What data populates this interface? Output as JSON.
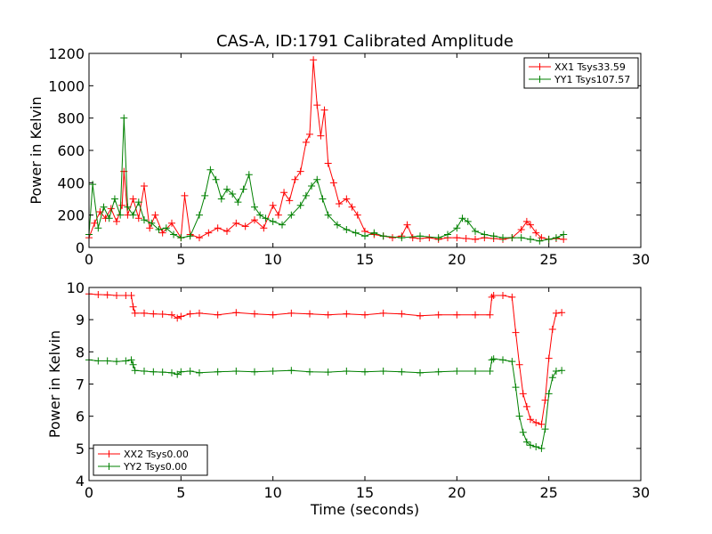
{
  "title": "CAS-A, ID:1791 Calibrated Amplitude",
  "colors": {
    "red": "#ff0000",
    "green": "#008000"
  },
  "chart_data": [
    {
      "type": "line",
      "marker": "+",
      "xlabel": "",
      "ylabel": "Power in Kelvin",
      "xlim": [
        0,
        30
      ],
      "ylim": [
        0,
        1200
      ],
      "xticks": [
        "0",
        "5",
        "10",
        "15",
        "20",
        "25",
        "30"
      ],
      "yticks": [
        "0",
        "200",
        "400",
        "600",
        "800",
        "1000",
        "1200"
      ],
      "legend_position": "top-right",
      "series": [
        {
          "name": "XX1 Tsys33.59",
          "color": "#ff0000",
          "x": [
            0,
            0.3,
            0.6,
            0.9,
            1.2,
            1.5,
            1.8,
            1.9,
            2.1,
            2.4,
            2.7,
            3.0,
            3.3,
            3.6,
            4.0,
            4.5,
            5.0,
            5.2,
            5.5,
            6.0,
            6.5,
            7.0,
            7.5,
            8.0,
            8.5,
            9.0,
            9.5,
            10.0,
            10.3,
            10.6,
            10.9,
            11.2,
            11.5,
            11.8,
            12.0,
            12.2,
            12.4,
            12.6,
            12.8,
            13.0,
            13.3,
            13.6,
            14.0,
            14.3,
            14.6,
            15.0,
            15.5,
            16.0,
            16.5,
            17.0,
            17.3,
            17.6,
            18.0,
            18.5,
            19.0,
            19.5,
            20.0,
            20.5,
            21.0,
            21.5,
            22.0,
            22.5,
            23.0,
            23.5,
            23.8,
            24.0,
            24.3,
            24.6,
            25.0,
            25.4,
            25.8
          ],
          "y": [
            60,
            150,
            220,
            180,
            240,
            160,
            260,
            470,
            200,
            300,
            180,
            380,
            120,
            200,
            90,
            150,
            60,
            320,
            80,
            60,
            90,
            120,
            100,
            150,
            130,
            170,
            120,
            260,
            200,
            340,
            290,
            420,
            470,
            650,
            700,
            1160,
            880,
            690,
            850,
            520,
            400,
            270,
            300,
            250,
            200,
            100,
            80,
            70,
            60,
            70,
            140,
            60,
            55,
            60,
            50,
            60,
            60,
            55,
            50,
            60,
            55,
            50,
            60,
            110,
            160,
            140,
            90,
            60,
            50,
            55,
            50
          ]
        },
        {
          "name": "YY1 Tsys107.57",
          "color": "#008000",
          "x": [
            0,
            0.2,
            0.5,
            0.8,
            1.1,
            1.4,
            1.7,
            1.9,
            2.1,
            2.4,
            2.7,
            3.0,
            3.4,
            3.8,
            4.2,
            4.6,
            5.0,
            5.5,
            6.0,
            6.3,
            6.6,
            6.9,
            7.2,
            7.5,
            7.8,
            8.1,
            8.4,
            8.7,
            9.0,
            9.3,
            9.6,
            10.0,
            10.5,
            11.0,
            11.5,
            11.8,
            12.1,
            12.4,
            12.7,
            13.0,
            13.5,
            14.0,
            14.5,
            15.0,
            15.5,
            16.0,
            17.0,
            18.0,
            19.0,
            19.5,
            20.0,
            20.3,
            20.6,
            21.0,
            21.5,
            22.0,
            22.5,
            23.0,
            23.5,
            24.0,
            24.5,
            25.0,
            25.4,
            25.8
          ],
          "y": [
            80,
            390,
            120,
            250,
            180,
            300,
            200,
            800,
            250,
            200,
            280,
            170,
            150,
            110,
            120,
            80,
            60,
            70,
            200,
            320,
            480,
            420,
            300,
            360,
            330,
            280,
            360,
            450,
            250,
            200,
            180,
            160,
            140,
            200,
            260,
            320,
            380,
            420,
            300,
            200,
            140,
            110,
            90,
            70,
            90,
            70,
            60,
            70,
            60,
            80,
            120,
            180,
            160,
            100,
            80,
            70,
            60,
            60,
            60,
            50,
            40,
            50,
            60,
            80
          ]
        }
      ]
    },
    {
      "type": "line",
      "marker": "+",
      "xlabel": "Time (seconds)",
      "ylabel": "Power in Kelvin",
      "xlim": [
        0,
        30
      ],
      "ylim": [
        4,
        10
      ],
      "xticks": [
        "0",
        "5",
        "10",
        "15",
        "20",
        "25",
        "30"
      ],
      "yticks": [
        "4",
        "5",
        "6",
        "7",
        "8",
        "9",
        "10"
      ],
      "legend_position": "bottom-left",
      "series": [
        {
          "name": "XX2 Tsys0.00",
          "color": "#ff0000",
          "x": [
            0,
            0.5,
            1.0,
            1.5,
            2.0,
            2.3,
            2.4,
            2.5,
            3.0,
            3.5,
            4.0,
            4.5,
            4.8,
            5.0,
            5.5,
            6.0,
            7.0,
            8.0,
            9.0,
            10.0,
            11.0,
            12.0,
            13.0,
            14.0,
            15.0,
            16.0,
            17.0,
            18.0,
            19.0,
            20.0,
            21.0,
            21.8,
            21.9,
            22.0,
            22.5,
            23.0,
            23.2,
            23.4,
            23.6,
            23.8,
            24.0,
            24.3,
            24.6,
            24.8,
            25.0,
            25.2,
            25.4,
            25.7
          ],
          "y": [
            9.8,
            9.78,
            9.77,
            9.75,
            9.75,
            9.75,
            9.4,
            9.2,
            9.2,
            9.18,
            9.17,
            9.15,
            9.05,
            9.1,
            9.18,
            9.2,
            9.15,
            9.22,
            9.18,
            9.15,
            9.2,
            9.18,
            9.15,
            9.18,
            9.15,
            9.2,
            9.18,
            9.12,
            9.15,
            9.15,
            9.15,
            9.15,
            9.7,
            9.75,
            9.75,
            9.7,
            8.6,
            7.6,
            6.7,
            6.3,
            5.9,
            5.8,
            5.75,
            6.5,
            7.8,
            8.7,
            9.2,
            9.22
          ]
        },
        {
          "name": "YY2 Tsys0.00",
          "color": "#008000",
          "x": [
            0,
            0.5,
            1.0,
            1.5,
            2.0,
            2.3,
            2.4,
            2.5,
            3.0,
            3.5,
            4.0,
            4.5,
            4.8,
            5.0,
            5.5,
            6.0,
            7.0,
            8.0,
            9.0,
            10.0,
            11.0,
            12.0,
            13.0,
            14.0,
            15.0,
            16.0,
            17.0,
            18.0,
            19.0,
            20.0,
            21.0,
            21.8,
            21.9,
            22.0,
            22.5,
            23.0,
            23.2,
            23.4,
            23.6,
            23.8,
            24.0,
            24.3,
            24.6,
            24.8,
            25.0,
            25.2,
            25.4,
            25.7
          ],
          "y": [
            7.75,
            7.72,
            7.72,
            7.7,
            7.72,
            7.75,
            7.6,
            7.42,
            7.4,
            7.38,
            7.37,
            7.35,
            7.3,
            7.38,
            7.4,
            7.35,
            7.38,
            7.4,
            7.38,
            7.4,
            7.42,
            7.38,
            7.37,
            7.4,
            7.38,
            7.4,
            7.38,
            7.35,
            7.38,
            7.4,
            7.4,
            7.4,
            7.75,
            7.78,
            7.75,
            7.7,
            6.9,
            6.0,
            5.5,
            5.2,
            5.1,
            5.05,
            5.0,
            5.6,
            6.7,
            7.2,
            7.4,
            7.42
          ]
        }
      ]
    }
  ]
}
